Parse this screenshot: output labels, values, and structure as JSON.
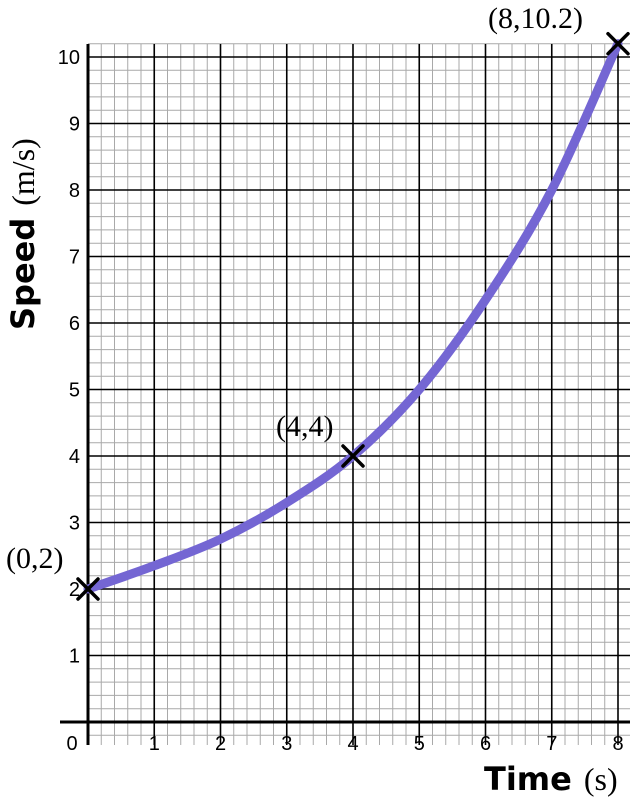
{
  "chart_data": {
    "type": "line",
    "title": "",
    "xlabel": {
      "text": "Time",
      "unit": "(s)"
    },
    "ylabel": {
      "text": "Speed",
      "unit": "(m/s)"
    },
    "xlim": [
      0,
      8
    ],
    "ylim": [
      0,
      10.2
    ],
    "x_ticks": [
      "0",
      "1",
      "2",
      "3",
      "4",
      "5",
      "6",
      "7",
      "8"
    ],
    "y_ticks": [
      "1",
      "2",
      "3",
      "4",
      "5",
      "6",
      "7",
      "8",
      "9",
      "10"
    ],
    "grid": true,
    "minor_grid_divisions": 5,
    "series": [
      {
        "color": "#7466d3",
        "x": [
          0,
          1,
          2,
          3,
          4,
          5,
          6,
          7,
          8
        ],
        "y": [
          2,
          2.35,
          2.75,
          3.3,
          4,
          5,
          6.35,
          8,
          10.2
        ]
      }
    ],
    "points": [
      {
        "x": 0,
        "y": 2,
        "label": "(0,2)"
      },
      {
        "x": 4,
        "y": 4,
        "label": "(4,4)"
      },
      {
        "x": 8,
        "y": 10.2,
        "label": "(8,10.2)"
      }
    ]
  }
}
